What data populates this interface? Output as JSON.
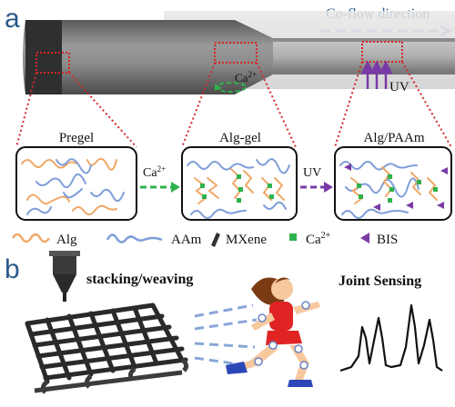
{
  "panel_a": {
    "letter": "a",
    "flow_direction_label": "Co-flow direction",
    "calcium_label": "Ca",
    "calcium_sup": "2+",
    "uv_label": "UV",
    "stages": [
      {
        "title": "Pregel"
      },
      {
        "title": "Alg-gel"
      },
      {
        "title": "Alg/PAAm"
      }
    ],
    "arrow_labels": [
      {
        "text": "Ca",
        "sup": "2+"
      },
      {
        "text": "UV",
        "sup": ""
      }
    ],
    "legend": [
      {
        "text": "Alg",
        "sup": "",
        "icon": "alg-chain-icon",
        "color": "#f0a868"
      },
      {
        "text": "AAm",
        "sup": "",
        "icon": "aam-chain-icon",
        "color": "#7f9ed8"
      },
      {
        "text": "MXene",
        "sup": "",
        "icon": "mxene-flake-icon",
        "color": "#333333"
      },
      {
        "text": "Ca",
        "sup": "2+",
        "icon": "calcium-square-icon",
        "color": "#2db24c"
      },
      {
        "text": "BIS",
        "sup": "",
        "icon": "bis-triangle-icon",
        "color": "#7a3aa6"
      }
    ]
  },
  "panel_b": {
    "letter": "b",
    "stacking_label": "stacking/weaving",
    "sensing_label": "Joint Sensing"
  },
  "colors": {
    "panel_letter": "#2a5b8a",
    "dotted_red": "#d62728",
    "arrow_green": "#2db24c",
    "arrow_purple": "#7a3aa6",
    "flow_arrow": "#8aa6d8",
    "alg": "#f0a868",
    "aam": "#7f9ed8",
    "runner_red": "#e02424",
    "skin": "#f7c79e"
  }
}
